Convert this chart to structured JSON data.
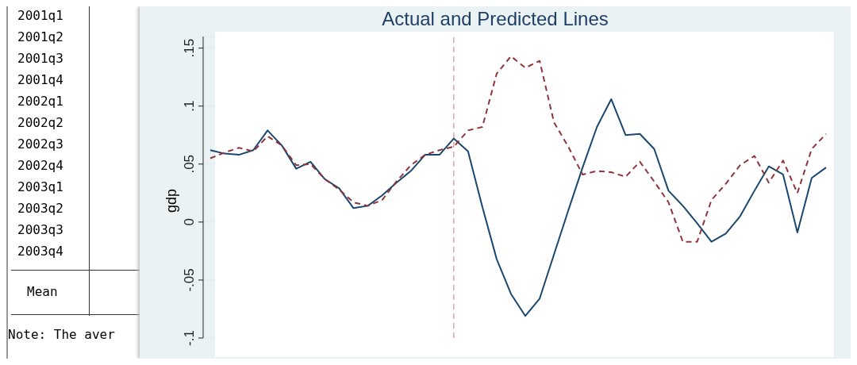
{
  "chart_data": {
    "type": "line",
    "title": "Actual and Predicted Lines",
    "ylabel": "gdp",
    "categories": [
      null,
      null,
      null,
      null,
      null,
      null,
      null,
      null,
      null,
      null,
      null,
      null,
      null,
      null,
      null,
      null,
      null,
      null,
      null,
      null,
      null,
      null,
      null,
      null,
      null,
      null,
      null,
      null,
      null,
      null,
      null,
      null,
      null,
      null,
      null,
      null,
      null,
      null,
      null,
      null,
      null,
      null,
      null,
      null
    ],
    "series": [
      {
        "color": "#1a476f",
        "line_style": "solid",
        "values": [
          0.062,
          0.059,
          0.058,
          0.062,
          0.079,
          0.066,
          0.046,
          0.052,
          0.037,
          0.029,
          0.012,
          0.014,
          0.023,
          0.034,
          0.044,
          0.058,
          0.058,
          0.072,
          0.061,
          0.013,
          -0.032,
          -0.062,
          -0.081,
          -0.066,
          -0.028,
          0.01,
          0.047,
          0.082,
          0.106,
          0.075,
          0.076,
          0.063,
          0.027,
          0.014,
          -0.001,
          -0.017,
          -0.01,
          0.005,
          0.027,
          0.048,
          0.041,
          -0.009,
          0.038,
          0.047
        ]
      },
      {
        "color": "#90353b",
        "line_style": "dashed",
        "values": [
          0.055,
          0.06,
          0.064,
          0.061,
          0.074,
          0.066,
          0.049,
          0.05,
          0.037,
          0.028,
          0.017,
          0.014,
          0.019,
          0.035,
          0.049,
          0.058,
          0.062,
          0.065,
          0.079,
          0.082,
          0.128,
          0.143,
          0.133,
          0.139,
          0.086,
          0.065,
          0.041,
          0.044,
          0.043,
          0.039,
          0.052,
          0.035,
          0.017,
          -0.017,
          -0.017,
          0.019,
          0.033,
          0.049,
          0.057,
          0.034,
          0.053,
          0.025,
          0.063,
          0.076
        ]
      }
    ],
    "ylim": [
      -0.1,
      0.16
    ],
    "yticks": [
      {
        "value": -0.1,
        "label": "-.1"
      },
      {
        "value": -0.05,
        "label": "-.05"
      },
      0,
      {
        "value": 0.05,
        "label": ".05"
      },
      {
        "value": 0.1,
        "label": ".1"
      },
      {
        "value": 0.15,
        "label": ".15"
      }
    ],
    "grid": "y",
    "marker": "none",
    "tick_labels": "y",
    "annotations": [
      "2001q1",
      "2001q2",
      "2001q3",
      "2001q4",
      "2002q1",
      "2002q2",
      "2002q3",
      "2002q4",
      "2003q1",
      "2003q2",
      "2003q3",
      "2003q4",
      "Mean",
      "Note: The aver"
    ]
  }
}
